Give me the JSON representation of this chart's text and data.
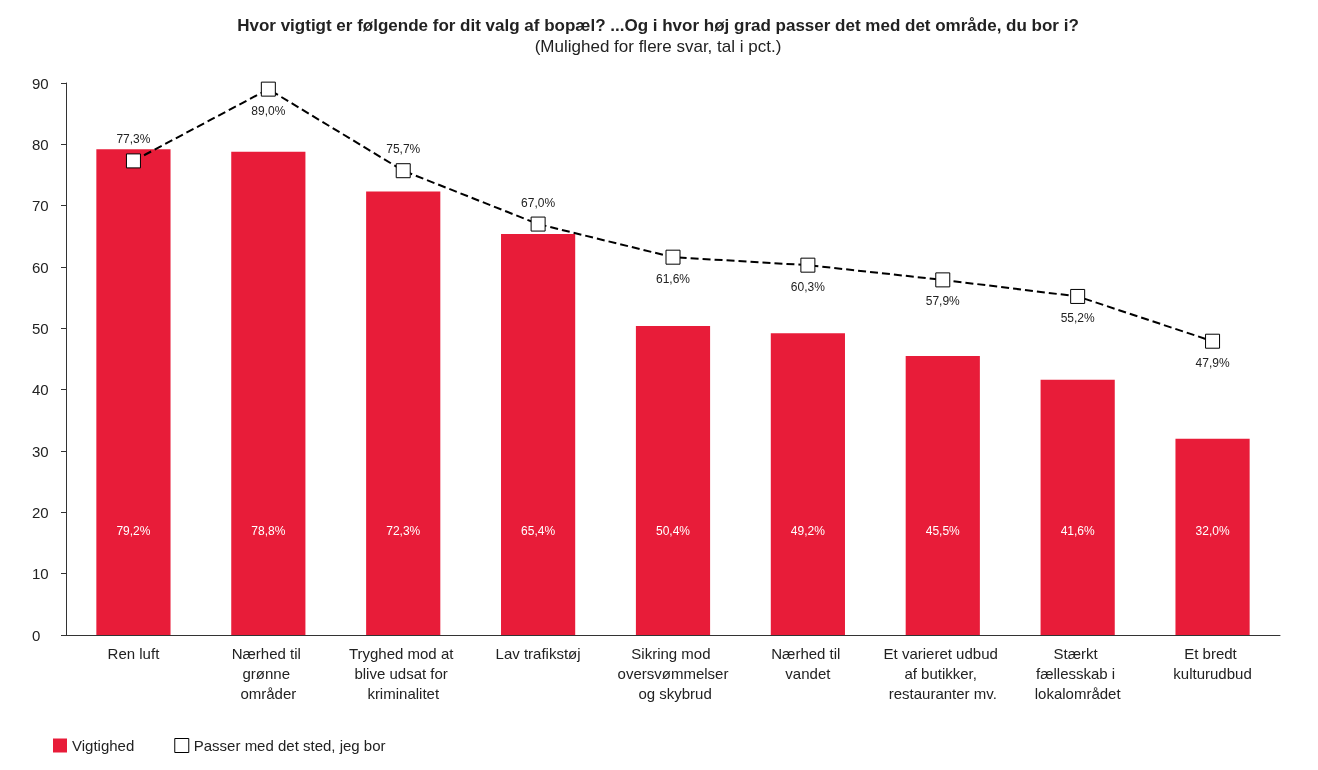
{
  "chart_data": {
    "type": "bar",
    "title": "Hvor vigtigt er følgende for dit valg af bopæl? ...Og i hvor høj grad passer det med det område, du bor i?",
    "subtitle": "(Mulighed for flere svar, tal i pct.)",
    "categories": [
      "Ren luft",
      "Nærhed til grønne områder",
      "Tryghed mod at blive udsat for kriminalitet",
      "Lav trafikstøj",
      "Sikring mod oversvømmelser og skybrud",
      "Nærhed til vandet",
      "Et varieret udbud af butikker, restauranter mv.",
      "Stærkt fællesskab i lokalområdet",
      "Et bredt kulturudbud"
    ],
    "series": [
      {
        "name": "Vigtighed",
        "color": "#e81c39",
        "values": [
          79.2,
          78.8,
          72.3,
          65.4,
          50.4,
          49.2,
          45.5,
          41.6,
          32.0
        ],
        "value_labels": [
          "79,2%",
          "78,8%",
          "72,3%",
          "65,4%",
          "50,4%",
          "49,2%",
          "45,5%",
          "41,6%",
          "32,0%"
        ]
      },
      {
        "name": "Passer med det sted, jeg bor",
        "type": "line",
        "color": "#000000",
        "marker": "square",
        "line_style": "dashed",
        "values": [
          77.3,
          89.0,
          75.7,
          67.0,
          61.6,
          60.3,
          57.9,
          55.2,
          47.9
        ],
        "value_labels": [
          "77,3%",
          "89,0%",
          "75,7%",
          "67,0%",
          "61,6%",
          "60,3%",
          "57,9%",
          "55,2%",
          "47,9%"
        ]
      }
    ],
    "ylim": [
      0,
      90
    ],
    "yticks": [
      0,
      10,
      20,
      30,
      40,
      50,
      60,
      70,
      80,
      90
    ],
    "grid": false,
    "legend": "bottom left"
  }
}
